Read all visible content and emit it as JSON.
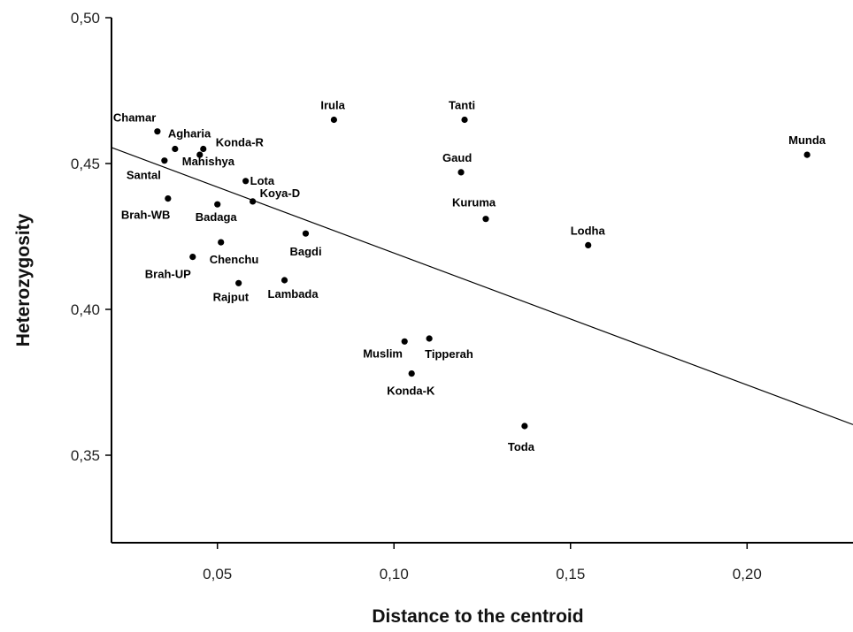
{
  "chart_data": {
    "type": "scatter",
    "xlabel": "Distance to the centroid",
    "ylabel": "Heterozygosity",
    "xlim": [
      0.02,
      0.23
    ],
    "ylim": [
      0.32,
      0.5
    ],
    "xticks": [
      {
        "value": 0.05,
        "label": "0,05"
      },
      {
        "value": 0.1,
        "label": "0,10"
      },
      {
        "value": 0.15,
        "label": "0,15"
      },
      {
        "value": 0.2,
        "label": "0,20"
      }
    ],
    "yticks": [
      {
        "value": 0.35,
        "label": "0,35"
      },
      {
        "value": 0.4,
        "label": "0,40"
      },
      {
        "value": 0.45,
        "label": "0,45"
      },
      {
        "value": 0.5,
        "label": "0,50"
      }
    ],
    "points": [
      {
        "name": "Chamar",
        "x": 0.033,
        "y": 0.461
      },
      {
        "name": "Agharia",
        "x": 0.038,
        "y": 0.455
      },
      {
        "name": "Konda-R",
        "x": 0.046,
        "y": 0.455
      },
      {
        "name": "Mahishya",
        "x": 0.045,
        "y": 0.453
      },
      {
        "name": "Santal",
        "x": 0.035,
        "y": 0.451
      },
      {
        "name": "Lota",
        "x": 0.058,
        "y": 0.444
      },
      {
        "name": "Koya-D",
        "x": 0.06,
        "y": 0.437
      },
      {
        "name": "Brah-WB",
        "x": 0.036,
        "y": 0.438
      },
      {
        "name": "Badaga",
        "x": 0.05,
        "y": 0.436
      },
      {
        "name": "Chenchu",
        "x": 0.051,
        "y": 0.423
      },
      {
        "name": "Bagdi",
        "x": 0.075,
        "y": 0.426
      },
      {
        "name": "Brah-UP",
        "x": 0.043,
        "y": 0.418
      },
      {
        "name": "Rajput",
        "x": 0.056,
        "y": 0.409
      },
      {
        "name": "Lambada",
        "x": 0.069,
        "y": 0.41
      },
      {
        "name": "Irula",
        "x": 0.083,
        "y": 0.465
      },
      {
        "name": "Tanti",
        "x": 0.12,
        "y": 0.465
      },
      {
        "name": "Gaud",
        "x": 0.119,
        "y": 0.447
      },
      {
        "name": "Kuruma",
        "x": 0.126,
        "y": 0.431
      },
      {
        "name": "Munda",
        "x": 0.217,
        "y": 0.453
      },
      {
        "name": "Lodha",
        "x": 0.155,
        "y": 0.422
      },
      {
        "name": "Muslim",
        "x": 0.103,
        "y": 0.389
      },
      {
        "name": "Tipperah",
        "x": 0.11,
        "y": 0.39
      },
      {
        "name": "Konda-K",
        "x": 0.105,
        "y": 0.378
      },
      {
        "name": "Toda",
        "x": 0.137,
        "y": 0.36
      }
    ],
    "trendline": {
      "x": [
        0.02,
        0.23
      ],
      "y": [
        0.4555,
        0.3605
      ]
    },
    "grid": false,
    "legend": "none"
  }
}
